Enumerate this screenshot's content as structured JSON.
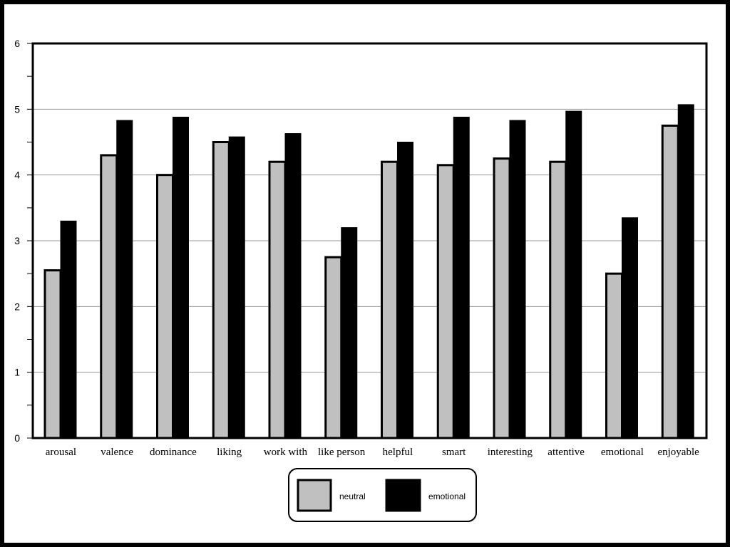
{
  "chart_data": {
    "type": "bar",
    "categories": [
      "arousal",
      "valence",
      "dominance",
      "liking",
      "work with",
      "like person",
      "helpful",
      "smart",
      "interesting",
      "attentive",
      "emotional",
      "enjoyable"
    ],
    "series": [
      {
        "name": "neutral",
        "color": "#c0c0c0",
        "values": [
          2.55,
          4.3,
          4.0,
          4.5,
          4.2,
          2.75,
          4.2,
          4.15,
          4.25,
          4.2,
          2.5,
          4.75
        ]
      },
      {
        "name": "emotional",
        "color": "#000000",
        "values": [
          3.3,
          4.83,
          4.88,
          4.58,
          4.63,
          3.2,
          4.5,
          4.88,
          4.83,
          4.97,
          3.35,
          5.07
        ]
      }
    ],
    "title": "",
    "xlabel": "",
    "ylabel": "",
    "ylim": [
      0,
      6
    ],
    "yticks": [
      "0",
      "1",
      "2",
      "3",
      "4",
      "5",
      "6"
    ],
    "grid": true,
    "legend_position": "bottom-center"
  }
}
